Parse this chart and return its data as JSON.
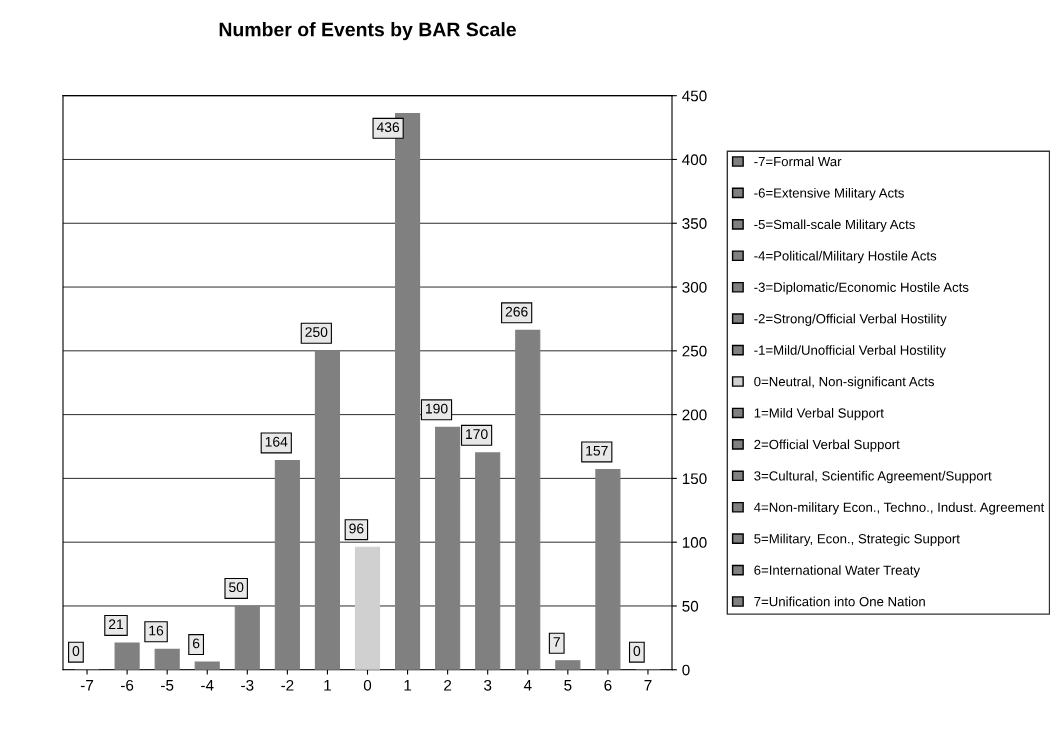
{
  "chart_data": {
    "type": "bar",
    "title": "Number of Events by BAR Scale",
    "categories": [
      "-7",
      "-6",
      "-5",
      "-4",
      "-3",
      "-2",
      "1",
      "0",
      "1",
      "2",
      "3",
      "4",
      "5",
      "6",
      "7"
    ],
    "series": [
      {
        "name": "-7=Formal War",
        "color": "#808080",
        "values": [
          0,
          null,
          null,
          null,
          null,
          null,
          null,
          null,
          null,
          null,
          null,
          null,
          null,
          null,
          null
        ]
      },
      {
        "name": "-6=Extensive Military Acts",
        "color": "#808080",
        "values": [
          null,
          21,
          null,
          null,
          null,
          null,
          null,
          null,
          null,
          null,
          null,
          null,
          null,
          null,
          null
        ]
      },
      {
        "name": "-5=Small-scale Military Acts",
        "color": "#808080",
        "values": [
          null,
          null,
          16,
          null,
          null,
          null,
          null,
          null,
          null,
          null,
          null,
          null,
          null,
          null,
          null
        ]
      },
      {
        "name": "-4=Political/Military Hostile Acts",
        "color": "#808080",
        "values": [
          null,
          null,
          null,
          6,
          null,
          null,
          null,
          null,
          null,
          null,
          null,
          null,
          null,
          null,
          null
        ]
      },
      {
        "name": "-3=Diplomatic/Economic Hostile Acts",
        "color": "#808080",
        "values": [
          null,
          null,
          null,
          null,
          50,
          null,
          null,
          null,
          null,
          null,
          null,
          null,
          null,
          null,
          null
        ]
      },
      {
        "name": "-2=Strong/Official Verbal Hostility",
        "color": "#808080",
        "values": [
          null,
          null,
          null,
          null,
          null,
          164,
          null,
          null,
          null,
          null,
          null,
          null,
          null,
          null,
          null
        ]
      },
      {
        "name": "-1=Mild/Unofficial Verbal Hostility",
        "color": "#808080",
        "values": [
          null,
          null,
          null,
          null,
          null,
          null,
          250,
          null,
          null,
          null,
          null,
          null,
          null,
          null,
          null
        ]
      },
      {
        "name": "0=Neutral, Non-significant Acts",
        "color": "#d0d0d0",
        "values": [
          null,
          null,
          null,
          null,
          null,
          null,
          null,
          96,
          null,
          null,
          null,
          null,
          null,
          null,
          null
        ]
      },
      {
        "name": "1=Mild Verbal Support",
        "color": "#808080",
        "values": [
          null,
          null,
          null,
          null,
          null,
          null,
          null,
          null,
          436,
          null,
          null,
          null,
          null,
          null,
          null
        ]
      },
      {
        "name": "2=Official Verbal Support",
        "color": "#808080",
        "values": [
          null,
          null,
          null,
          null,
          null,
          null,
          null,
          null,
          null,
          190,
          null,
          null,
          null,
          null,
          null
        ]
      },
      {
        "name": "3=Cultural, Scientific Agreement/Support",
        "color": "#808080",
        "values": [
          null,
          null,
          null,
          null,
          null,
          null,
          null,
          null,
          null,
          null,
          170,
          null,
          null,
          null,
          null
        ]
      },
      {
        "name": "4=Non-military Econ., Techno., Indust. Agreement",
        "color": "#808080",
        "values": [
          null,
          null,
          null,
          null,
          null,
          null,
          null,
          null,
          null,
          null,
          null,
          266,
          null,
          null,
          null
        ]
      },
      {
        "name": "5=Military, Econ., Strategic Support",
        "color": "#808080",
        "values": [
          null,
          null,
          null,
          null,
          null,
          null,
          null,
          null,
          null,
          null,
          null,
          null,
          7,
          null,
          null
        ]
      },
      {
        "name": "6=International Water Treaty",
        "color": "#808080",
        "values": [
          null,
          null,
          null,
          null,
          null,
          null,
          null,
          null,
          null,
          null,
          null,
          null,
          null,
          157,
          null
        ]
      },
      {
        "name": "7=Unification into One Nation",
        "color": "#808080",
        "values": [
          null,
          null,
          null,
          null,
          null,
          null,
          null,
          null,
          null,
          null,
          null,
          null,
          null,
          null,
          0
        ]
      }
    ],
    "ylim": [
      0,
      450
    ],
    "yticks": [
      0,
      50,
      100,
      150,
      200,
      250,
      300,
      350,
      400,
      450
    ],
    "grid": "y",
    "legend": "right",
    "data_labels": true
  }
}
